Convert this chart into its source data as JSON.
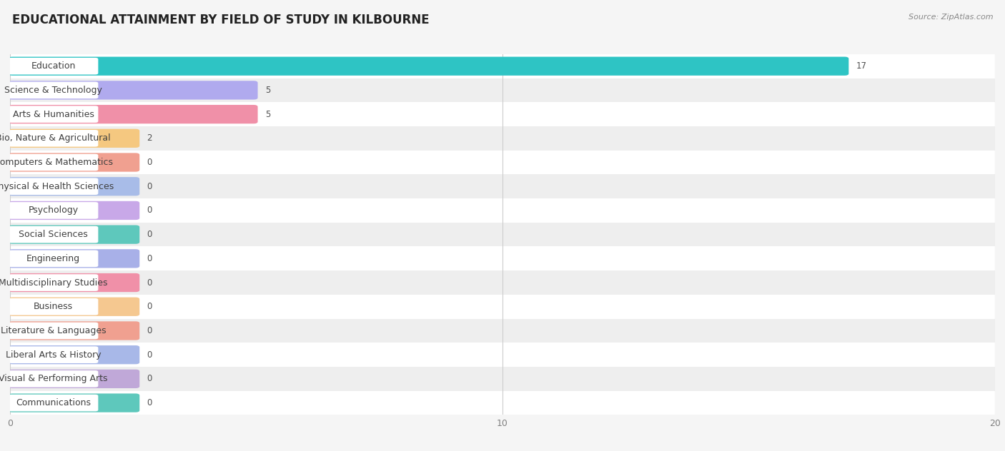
{
  "title": "EDUCATIONAL ATTAINMENT BY FIELD OF STUDY IN KILBOURNE",
  "source": "Source: ZipAtlas.com",
  "categories": [
    "Education",
    "Science & Technology",
    "Arts & Humanities",
    "Bio, Nature & Agricultural",
    "Computers & Mathematics",
    "Physical & Health Sciences",
    "Psychology",
    "Social Sciences",
    "Engineering",
    "Multidisciplinary Studies",
    "Business",
    "Literature & Languages",
    "Liberal Arts & History",
    "Visual & Performing Arts",
    "Communications"
  ],
  "values": [
    17,
    5,
    5,
    2,
    0,
    0,
    0,
    0,
    0,
    0,
    0,
    0,
    0,
    0,
    0
  ],
  "bar_colors": [
    "#2ec4c4",
    "#b0aaee",
    "#f090a8",
    "#f5c880",
    "#f0a090",
    "#a8bce8",
    "#c8a8e8",
    "#5ec8bc",
    "#a8b0e8",
    "#f090a8",
    "#f5c890",
    "#f0a090",
    "#a8b8e8",
    "#c0a8d8",
    "#5ec8bc"
  ],
  "xlim": [
    0,
    20
  ],
  "xticks": [
    0,
    10,
    20
  ],
  "background_color": "#f5f5f5",
  "row_even_color": "#ffffff",
  "row_odd_color": "#eeeeee",
  "bar_height": 0.62,
  "min_bar_width": 2.6,
  "title_fontsize": 12,
  "label_fontsize": 9,
  "value_fontsize": 8.5
}
